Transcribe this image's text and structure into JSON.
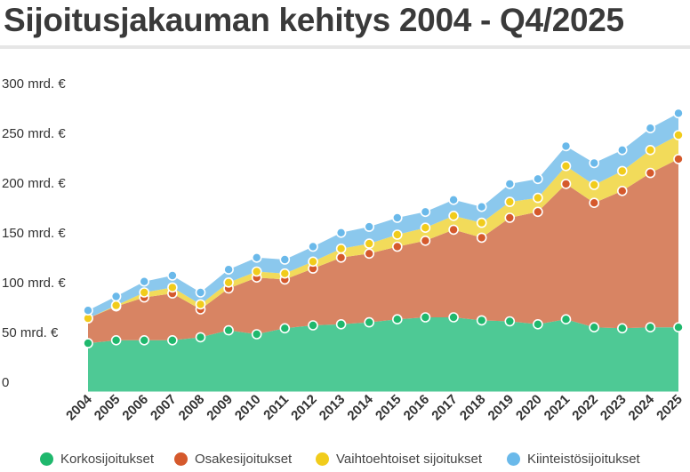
{
  "title": "Sijoitusjakauman kehitys 2004 - Q4/2025",
  "chart_data": {
    "type": "area",
    "stacked": true,
    "title": "Sijoitusjakauman kehitys 2004 - Q4/2025",
    "categories": [
      "2004",
      "2005",
      "2006",
      "2007",
      "2008",
      "2009",
      "2010",
      "2011",
      "2012",
      "2013",
      "2014",
      "2015",
      "2016",
      "2017",
      "2018",
      "2019",
      "2020",
      "2021",
      "2022",
      "2023",
      "2024",
      "2025"
    ],
    "y_ticks": [
      "0",
      "50 mrd. €",
      "100 mrd. €",
      "150 mrd. €",
      "200 mrd. €",
      "250 mrd. €",
      "300 mrd. €"
    ],
    "ylim": [
      0,
      300
    ],
    "grid": false,
    "legend_position": "bottom",
    "series": [
      {
        "name": "Korkosijoitukset",
        "color": "#4ec995",
        "dot_color": "#1fb86d",
        "values": [
          49,
          52,
          52,
          52,
          55,
          62,
          58,
          64,
          67,
          68,
          70,
          73,
          75,
          75,
          72,
          71,
          68,
          73,
          65,
          64,
          65,
          65
        ]
      },
      {
        "name": "Osakesijoitukset",
        "color": "#d88463",
        "dot_color": "#d5592c",
        "values": [
          25,
          34,
          43,
          47,
          28,
          42,
          57,
          49,
          57,
          67,
          69,
          73,
          77,
          88,
          83,
          104,
          113,
          136,
          125,
          138,
          155,
          169
        ]
      },
      {
        "name": "Vaihtoehtoiset sijoitukset",
        "color": "#f2db5a",
        "dot_color": "#f1cc1c",
        "values": [
          0,
          1,
          5,
          6,
          5,
          6,
          6,
          6,
          7,
          9,
          10,
          12,
          13,
          14,
          15,
          16,
          14,
          18,
          18,
          20,
          23,
          24
        ]
      },
      {
        "name": "Kiinteistösijoitukset",
        "color": "#8bc8ed",
        "dot_color": "#6ab9ea",
        "values": [
          8,
          9,
          11,
          12,
          12,
          13,
          14,
          14,
          15,
          16,
          17,
          17,
          16,
          16,
          16,
          18,
          19,
          20,
          22,
          21,
          22,
          22
        ]
      }
    ]
  }
}
